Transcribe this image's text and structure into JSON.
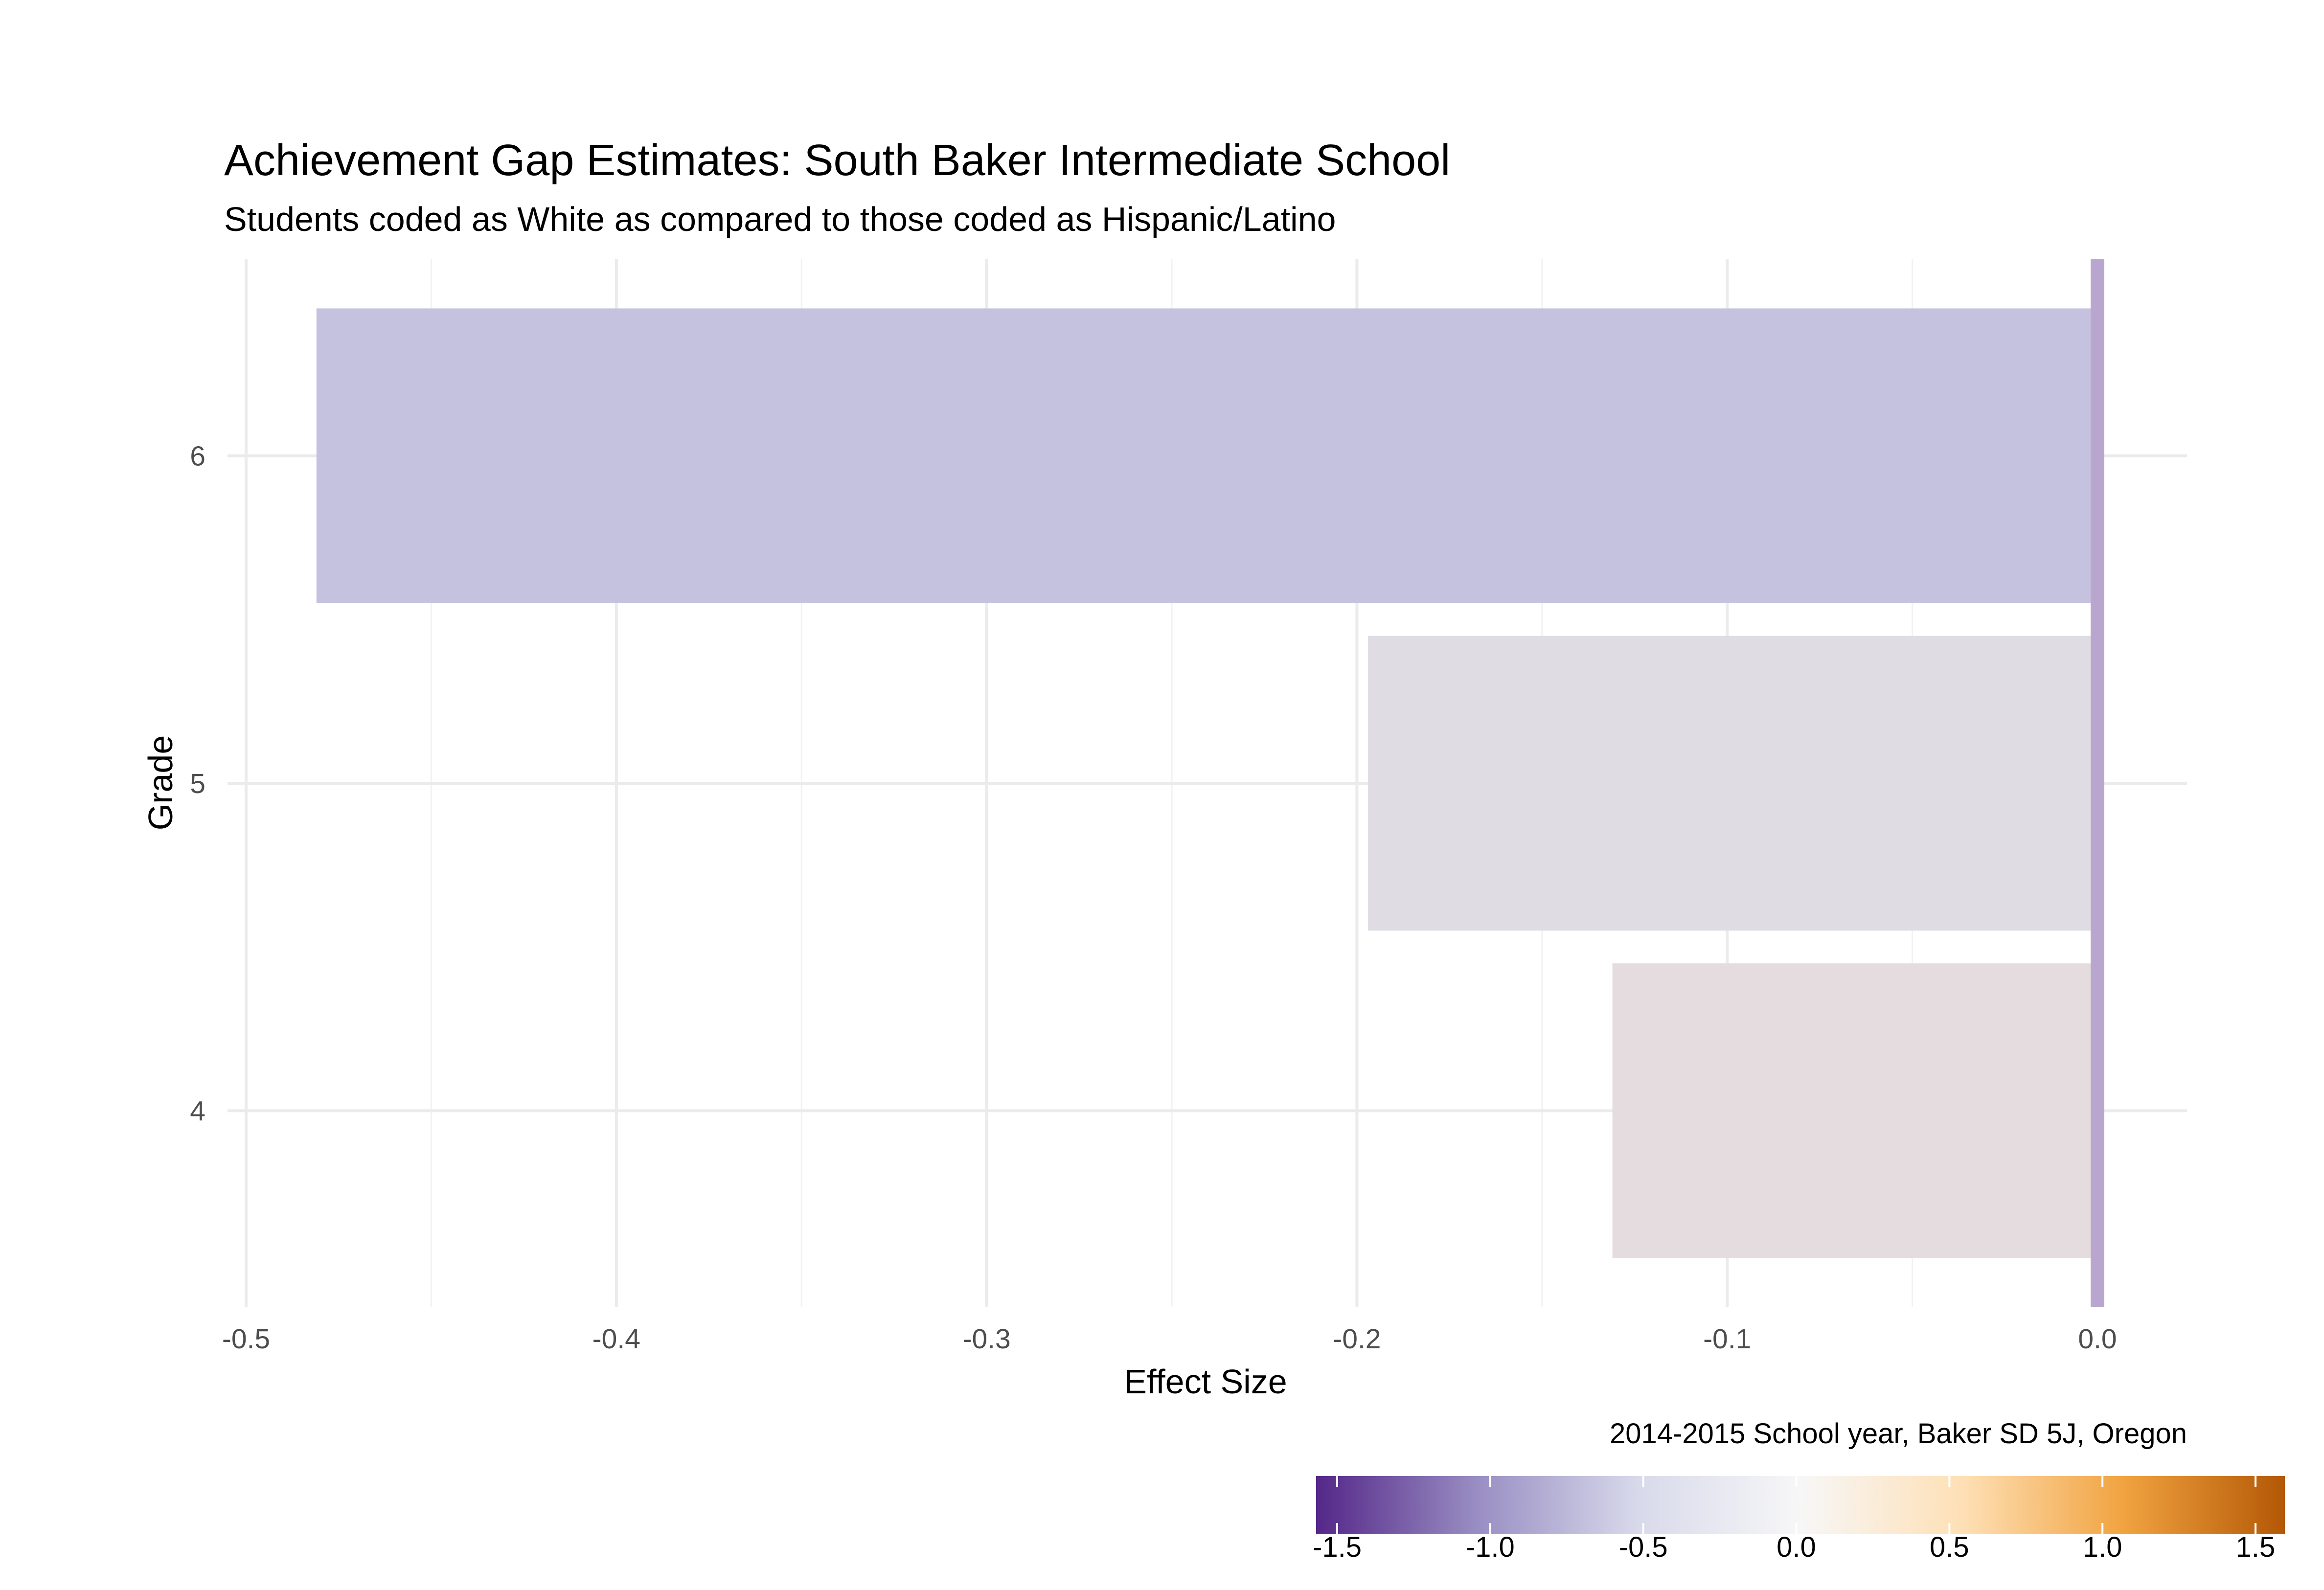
{
  "chart_data": {
    "type": "bar",
    "orientation": "horizontal",
    "title": "Achievement Gap Estimates: South Baker Intermediate School",
    "subtitle": "Students coded as White as compared to those coded as Hispanic/Latino",
    "caption": "2014-2015 School year, Baker SD 5J, Oregon",
    "xlabel": "Effect Size",
    "ylabel": "Grade",
    "categories": [
      "4",
      "5",
      "6"
    ],
    "values": [
      -0.131,
      -0.197,
      -0.481
    ],
    "bar_colors": [
      "#e4dcdf",
      "#dfdce4",
      "#c5c2e0"
    ],
    "xlim": [
      -0.5,
      0.0
    ],
    "x_ticks": [
      -0.5,
      -0.4,
      -0.3,
      -0.2,
      -0.1,
      0.0
    ],
    "x_tick_labels": [
      "-0.5",
      "-0.4",
      "-0.3",
      "-0.2",
      "-0.1",
      "0.0"
    ],
    "reference_line": {
      "x": 0.0,
      "color": "#b9a6cf"
    },
    "grid": true,
    "legend": {
      "type": "colorbar",
      "position": "bottom-right",
      "range": [
        -1.5,
        1.5
      ],
      "ticks": [
        -1.5,
        -1.0,
        -0.5,
        0.0,
        0.5,
        1.0,
        1.5
      ],
      "tick_labels": [
        "-1.5",
        "-1.0",
        "-0.5",
        "0.0",
        "0.5",
        "1.0",
        "1.5"
      ],
      "colors": [
        "#542788",
        "#998ec3",
        "#d8daeb",
        "#f7f7f7",
        "#fee0b6",
        "#f1a340",
        "#b35806"
      ]
    }
  }
}
